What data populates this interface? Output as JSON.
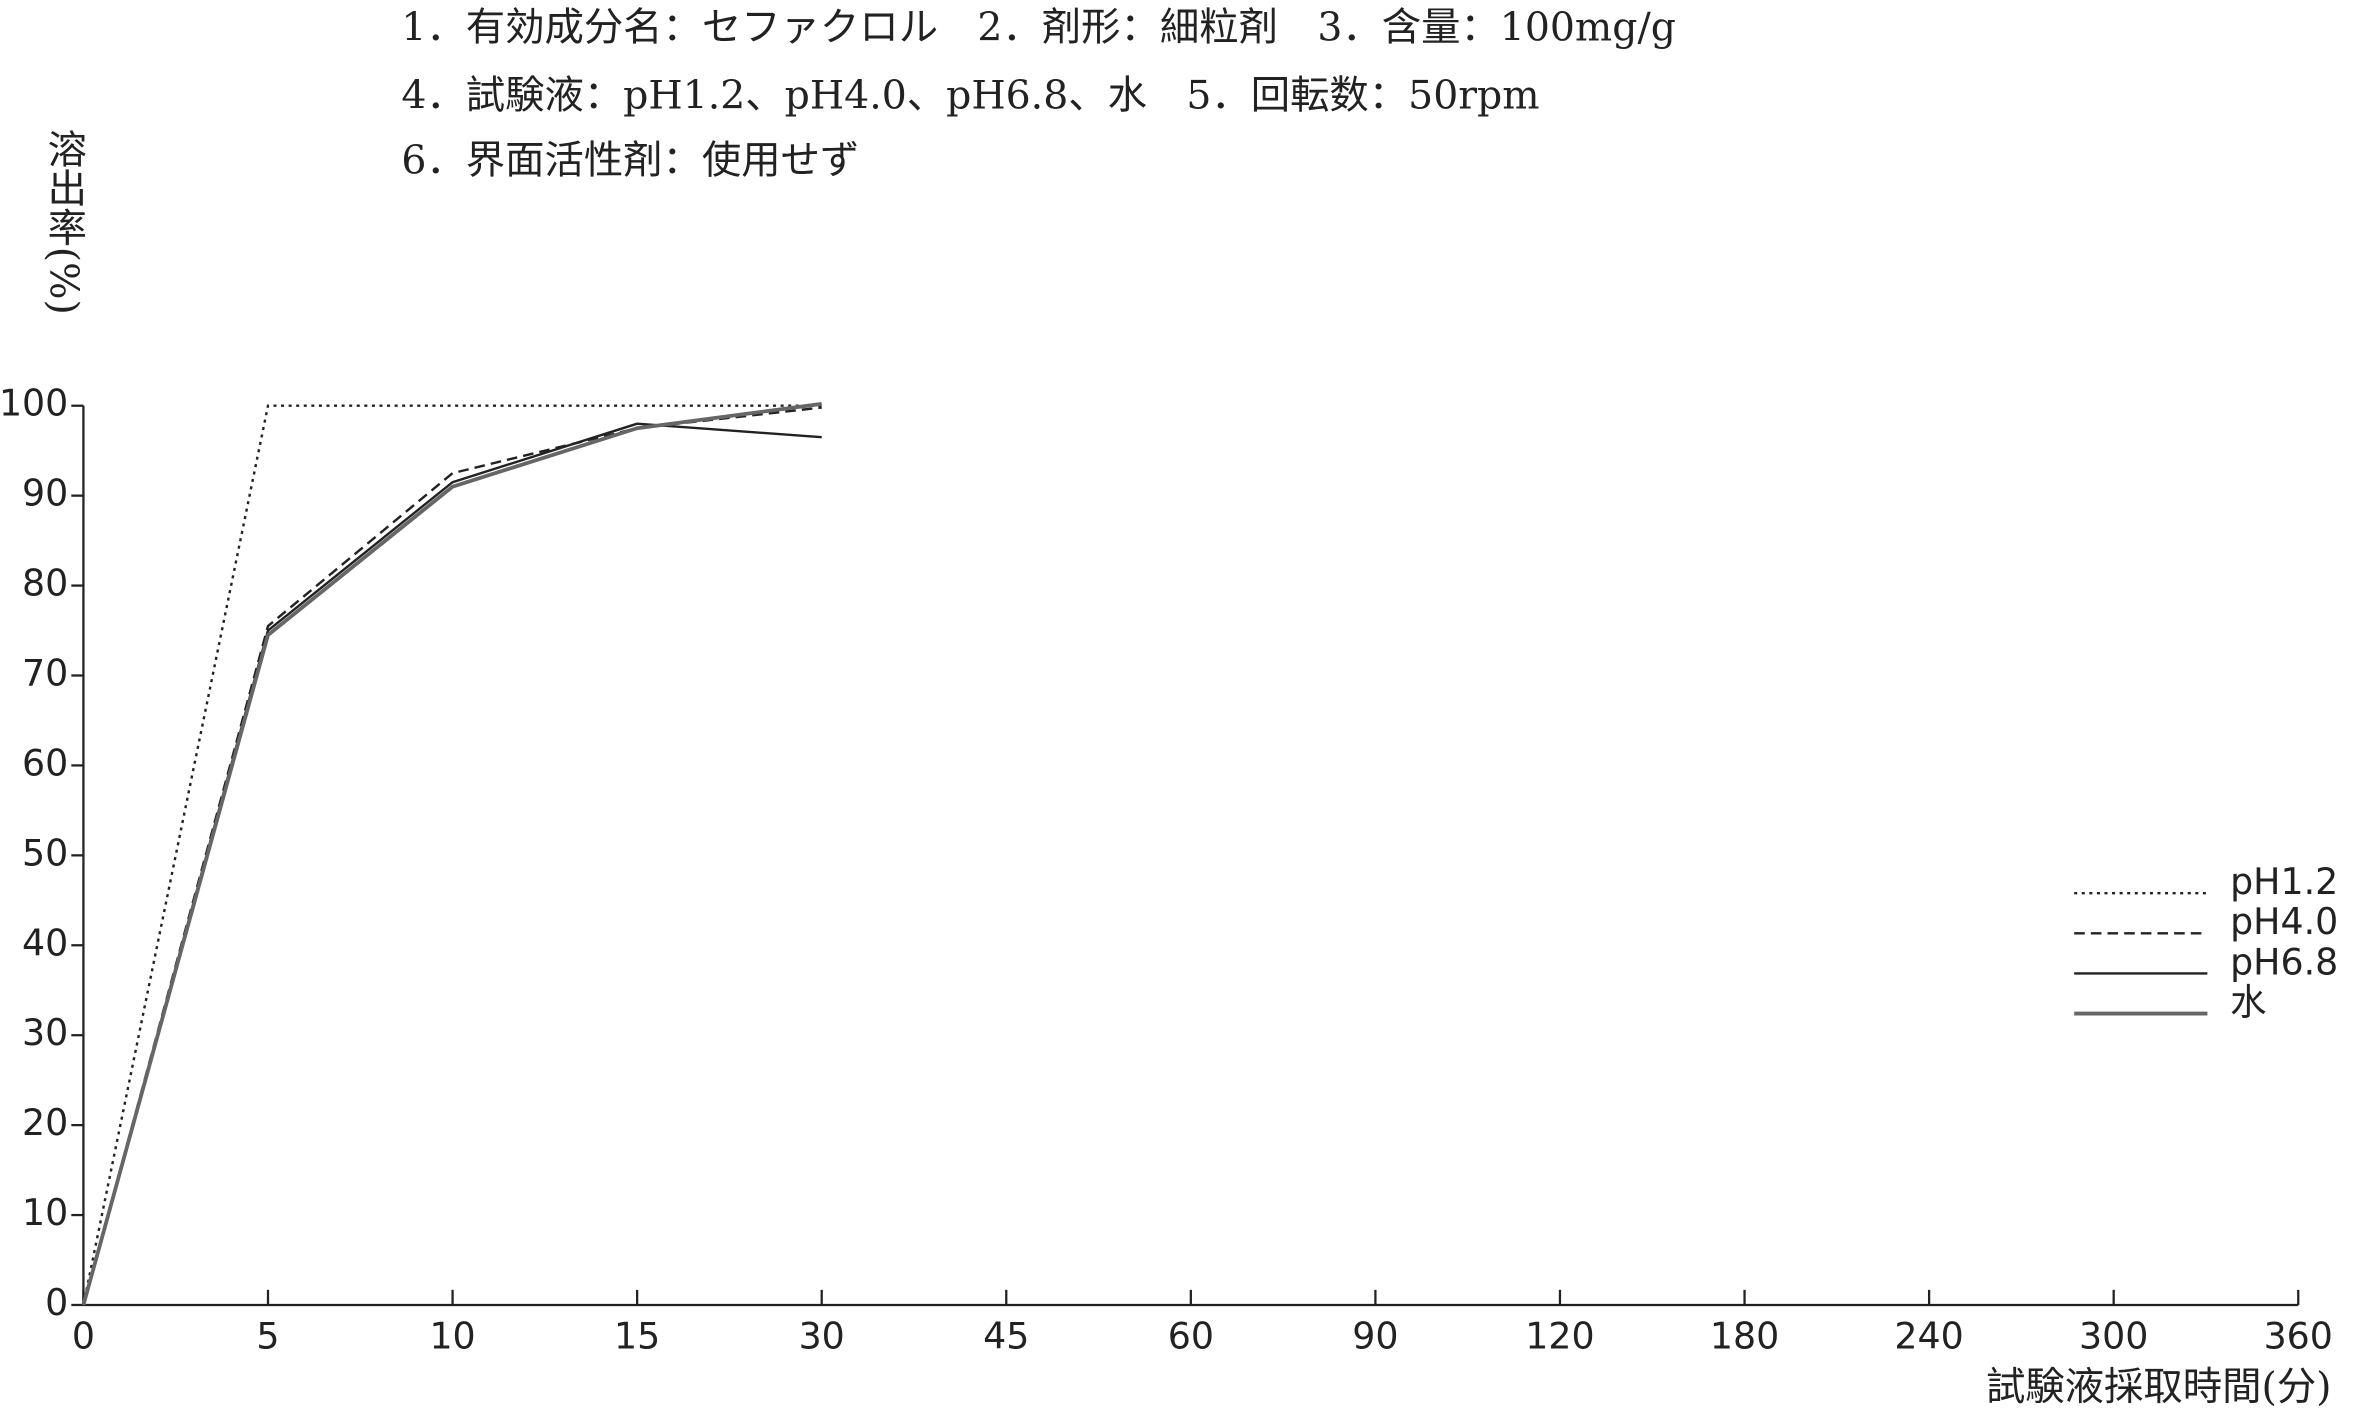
{
  "chart_data": {
    "type": "line",
    "annotations": [
      "1．有効成分名：セファクロル　2．剤形：細粒剤　3．含量：100mg/g",
      "4．試験液：pH1.2、pH4.0、pH6.8、水　5．回転数：50rpm",
      "6．界面活性剤：使用せず"
    ],
    "y_label": "溶出率(%)",
    "x_label": "試験液採取時間(分)",
    "categories": [
      "0",
      "5",
      "10",
      "15",
      "30",
      "45",
      "60",
      "90",
      "120",
      "180",
      "240",
      "300",
      "360"
    ],
    "series": [
      {
        "name": "pH1.2",
        "color": "#222222",
        "dash": "2,3",
        "values": [
          0,
          100,
          100,
          100,
          100,
          null,
          null,
          null,
          null,
          null,
          null,
          null,
          null
        ]
      },
      {
        "name": "pH4.0",
        "color": "#222222",
        "dash": "7,4",
        "values": [
          0,
          75.5,
          92.5,
          97.5,
          99.8,
          null,
          null,
          null,
          null,
          null,
          null,
          null,
          null
        ]
      },
      {
        "name": "pH6.8",
        "color": "#222222",
        "dash": "none",
        "values": [
          0,
          75,
          91.5,
          98,
          96.5,
          null,
          null,
          null,
          null,
          null,
          null,
          null,
          null
        ]
      },
      {
        "name": "水",
        "color": "#666666",
        "dash": "none",
        "values": [
          0,
          74.5,
          91,
          97.5,
          100.2,
          null,
          null,
          null,
          null,
          null,
          null,
          null,
          null
        ]
      }
    ],
    "ylim": [
      0,
      100
    ],
    "yticks": [
      0,
      10,
      20,
      30,
      40,
      50,
      60,
      70,
      80,
      90,
      100
    ],
    "grid": false,
    "legend": "right"
  }
}
